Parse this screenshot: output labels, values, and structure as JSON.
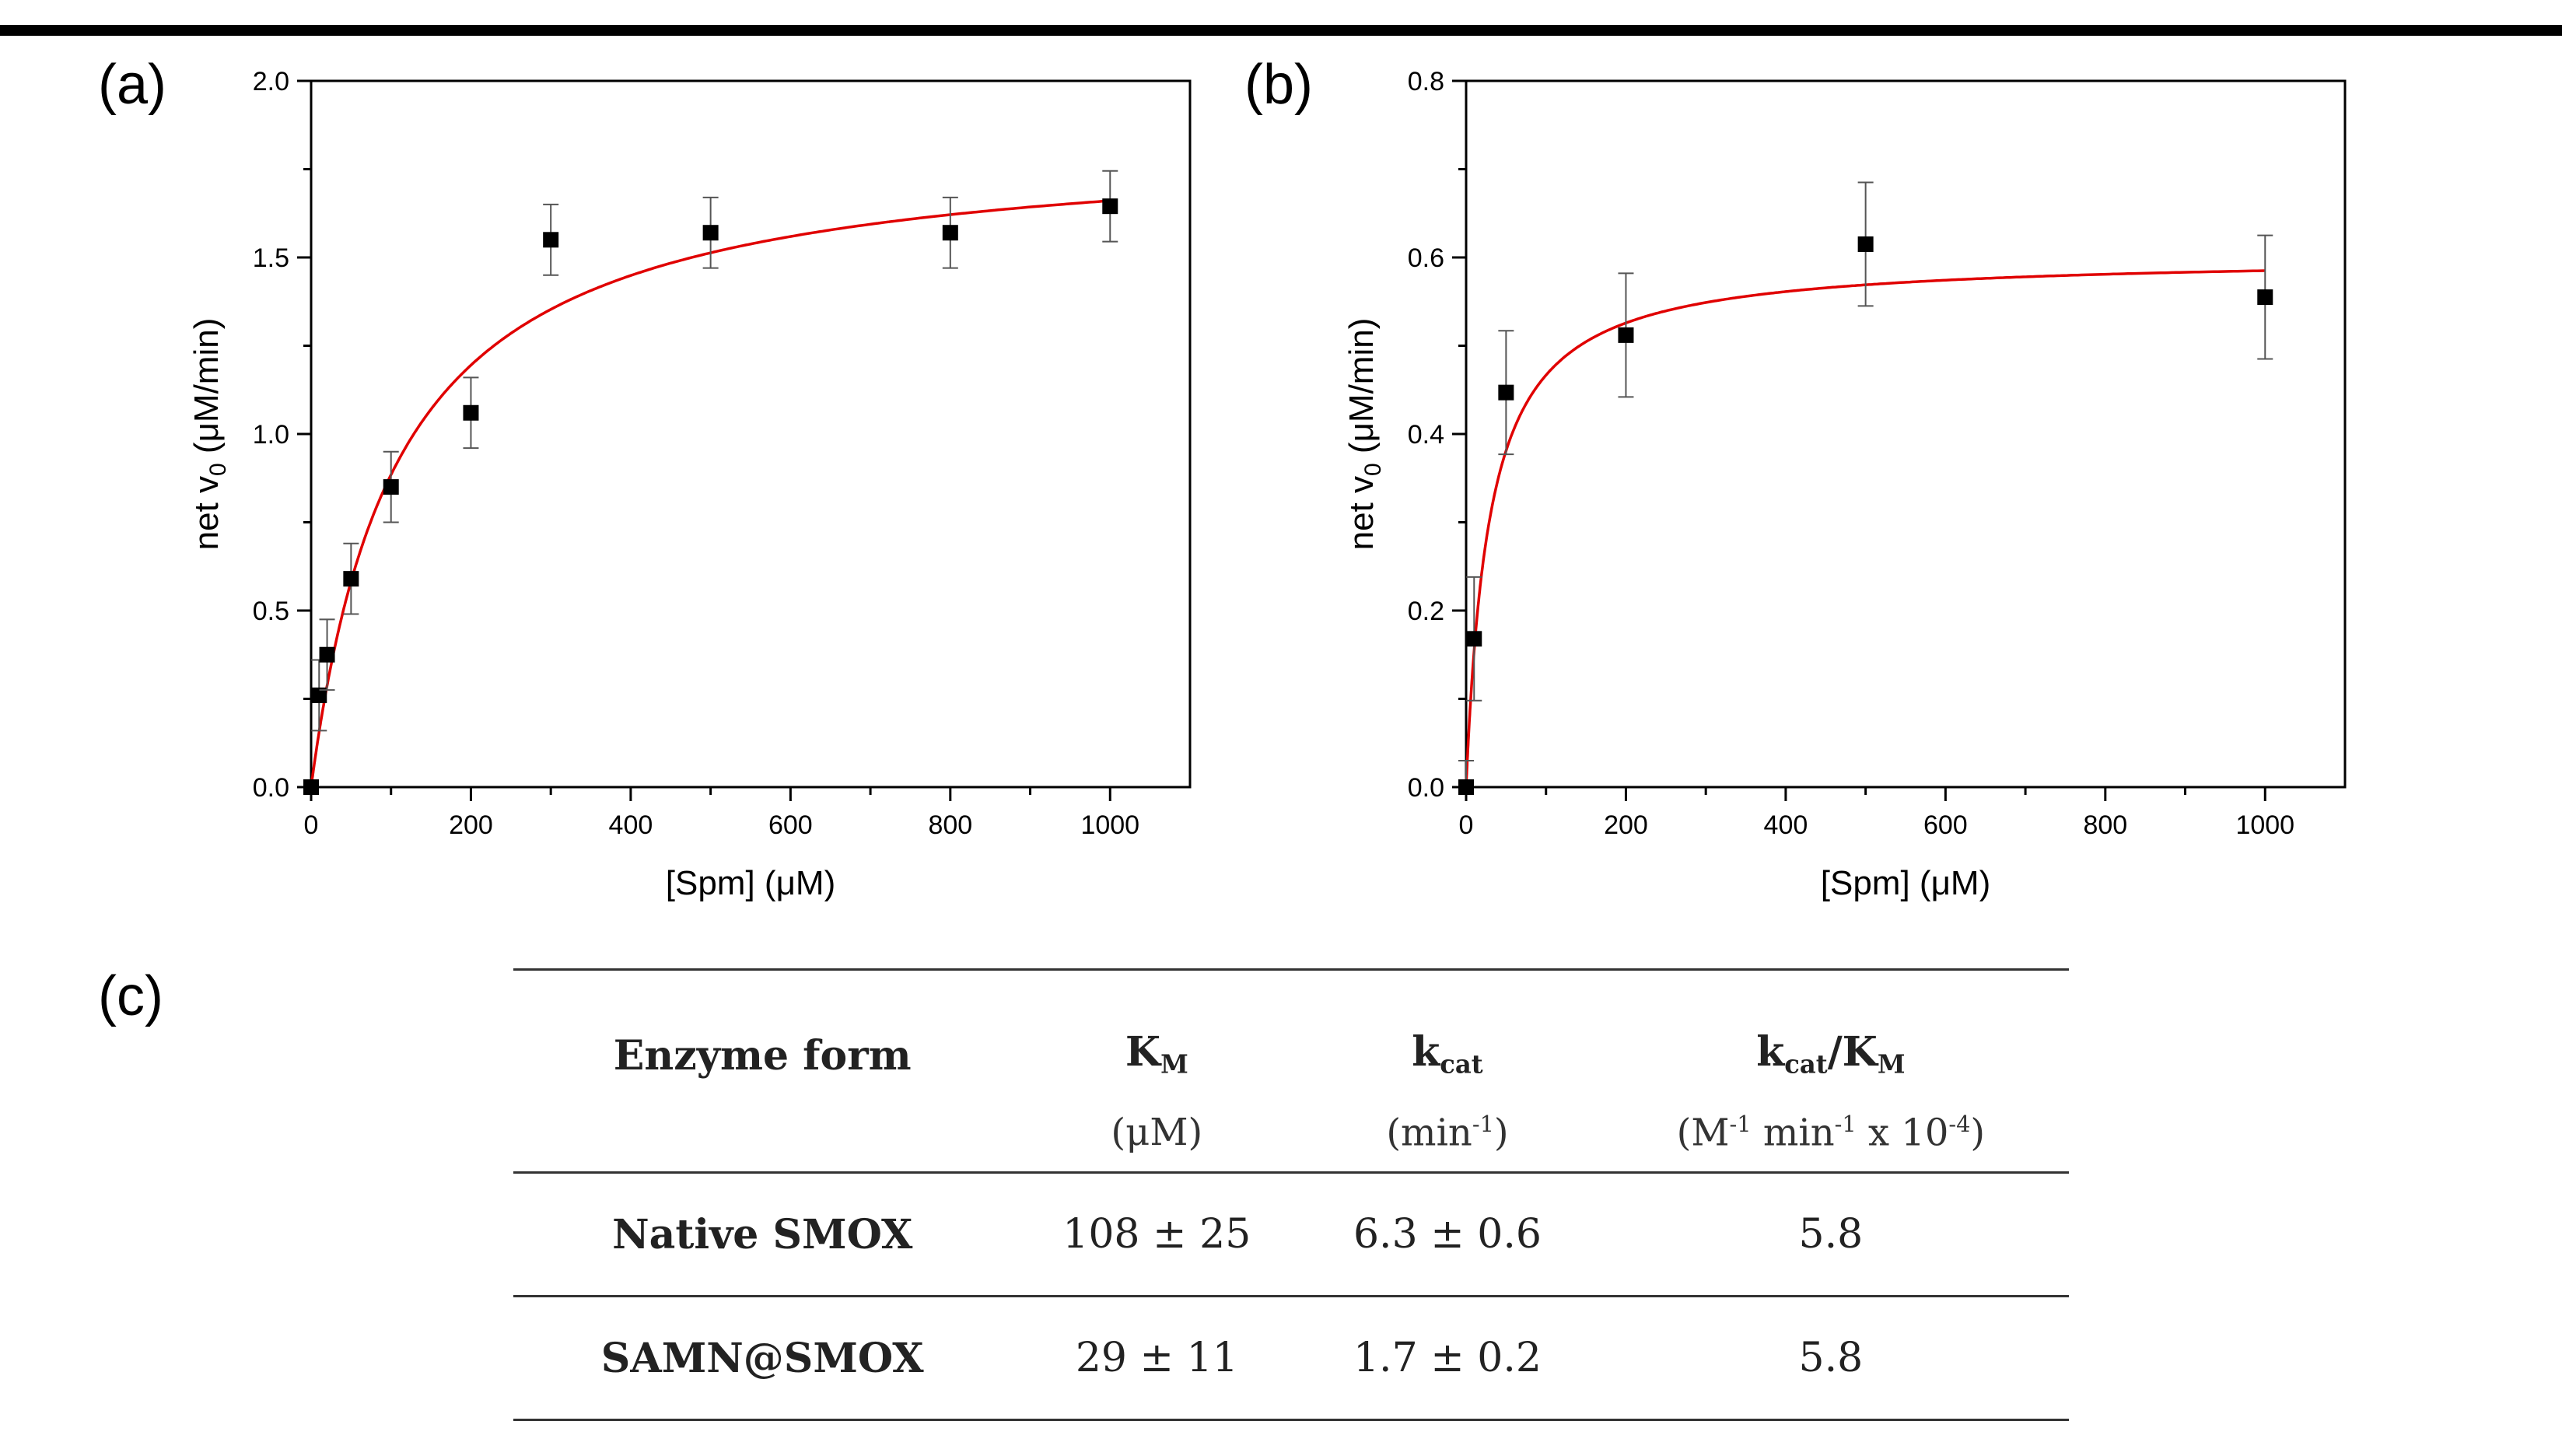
{
  "panel_labels": {
    "a": "(a)",
    "b": "(b)",
    "c": "(c)"
  },
  "colors": {
    "fit": "#e00000",
    "marker": "#000000",
    "errorbar": "#555555"
  },
  "chart_data": [
    {
      "id": "a",
      "type": "scatter",
      "xlabel": "[Spm] (μM)",
      "ylabel_main": "net v",
      "ylabel_sub": "0",
      "ylabel_unit": " (μM/min)",
      "xlim": [
        0,
        1100
      ],
      "ylim": [
        0,
        2.0
      ],
      "xticks": [
        0,
        200,
        400,
        600,
        800,
        1000
      ],
      "xtick_labels": [
        "0",
        "200",
        "400",
        "600",
        "800",
        "1000"
      ],
      "yticks": [
        0,
        0.5,
        1.0,
        1.5,
        2.0
      ],
      "ytick_labels": [
        "0.0",
        "0.5",
        "1.0",
        "1.5",
        "2.0"
      ],
      "points": [
        {
          "x": 0,
          "y": 0.0,
          "err": 0.0
        },
        {
          "x": 10,
          "y": 0.26,
          "err": 0.1
        },
        {
          "x": 20,
          "y": 0.375,
          "err": 0.1
        },
        {
          "x": 50,
          "y": 0.59,
          "err": 0.1
        },
        {
          "x": 100,
          "y": 0.85,
          "err": 0.1
        },
        {
          "x": 200,
          "y": 1.06,
          "err": 0.1
        },
        {
          "x": 300,
          "y": 1.55,
          "err": 0.1
        },
        {
          "x": 500,
          "y": 1.57,
          "err": 0.1
        },
        {
          "x": 800,
          "y": 1.57,
          "err": 0.1
        },
        {
          "x": 1000,
          "y": 1.645,
          "err": 0.1
        }
      ],
      "fit": {
        "model": "michaelis-menten",
        "vmax": 1.84,
        "km": 108,
        "xmax": 1000
      }
    },
    {
      "id": "b",
      "type": "scatter",
      "xlabel": "[Spm] (μM)",
      "ylabel_main": "net v",
      "ylabel_sub": "0",
      "ylabel_unit": " (μM/min)",
      "xlim": [
        0,
        1100
      ],
      "ylim": [
        0,
        0.8
      ],
      "xticks": [
        0,
        200,
        400,
        600,
        800,
        1000
      ],
      "xtick_labels": [
        "0",
        "200",
        "400",
        "600",
        "800",
        "1000"
      ],
      "yticks": [
        0,
        0.2,
        0.4,
        0.6,
        0.8
      ],
      "ytick_labels": [
        "0.0",
        "0.2",
        "0.4",
        "0.6",
        "0.8"
      ],
      "points": [
        {
          "x": 0,
          "y": 0.0,
          "err": 0.03
        },
        {
          "x": 10,
          "y": 0.168,
          "err": 0.07
        },
        {
          "x": 50,
          "y": 0.447,
          "err": 0.07
        },
        {
          "x": 200,
          "y": 0.512,
          "err": 0.07
        },
        {
          "x": 500,
          "y": 0.615,
          "err": 0.07
        },
        {
          "x": 1000,
          "y": 0.555,
          "err": 0.07
        }
      ],
      "fit": {
        "model": "michaelis-menten",
        "vmax": 0.602,
        "km": 29,
        "xmax": 1000
      }
    }
  ],
  "table": {
    "headers": [
      {
        "main": "Enzyme form",
        "sub": ""
      },
      {
        "main": "K",
        "sub": "M"
      },
      {
        "main": "k",
        "sub": "cat"
      },
      {
        "main": "k",
        "sub": "cat",
        "mid": "/K",
        "sub2": "M"
      }
    ],
    "units": {
      "km": "(μM)",
      "kcat_pre": "(min",
      "kcat_sup": "-1",
      "kcat_post": ")",
      "eff_pre": "(M",
      "eff_sup1": "-1",
      "eff_mid": " min",
      "eff_sup2": "-1",
      "eff_mid2": " x 10",
      "eff_sup3": "-4",
      "eff_post": ")"
    },
    "rows": [
      {
        "form": "Native SMOX",
        "km": "108 ± 25",
        "kcat": "6.3 ± 0.6",
        "eff": "5.8"
      },
      {
        "form": "SAMN@SMOX",
        "km": "29 ± 11",
        "kcat": "1.7 ± 0.2",
        "eff": "5.8"
      }
    ]
  }
}
